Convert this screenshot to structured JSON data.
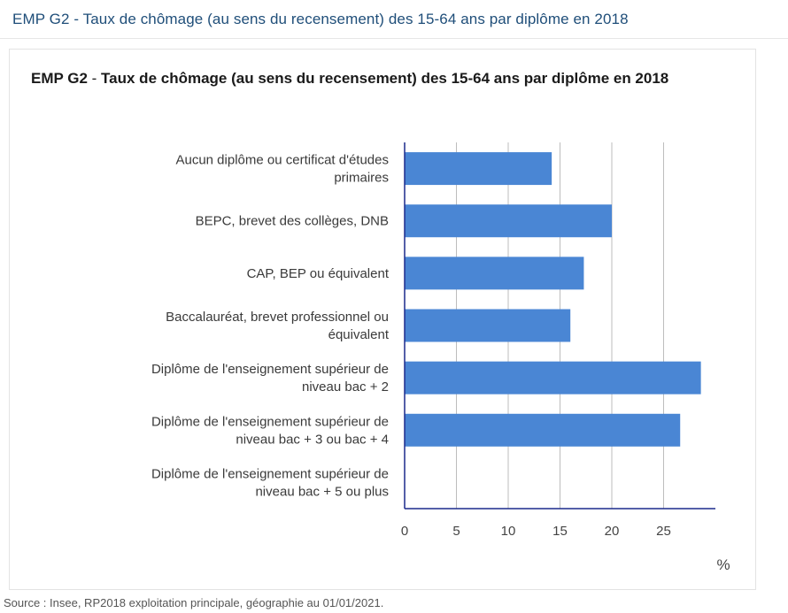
{
  "header": {
    "title": "EMP G2 - Taux de chômage (au sens du recensement) des 15-64 ans par diplôme en 2018"
  },
  "source": "Source : Insee, RP2018 exploitation principale, géographie au 01/01/2021.",
  "colors": {
    "bar": "#4a86d4",
    "axis": "#1c2a8c",
    "grid": "#bdbdbd"
  },
  "chart_data": {
    "type": "bar",
    "orientation": "horizontal",
    "title_code": "EMP G2",
    "title_sep": " - ",
    "title_text": "Taux de chômage (au sens du recensement) des 15-64 ans par diplôme en 2018",
    "categories": [
      [
        "Aucun diplôme ou certificat d'études",
        "primaires"
      ],
      [
        "BEPC, brevet des collèges, DNB"
      ],
      [
        "CAP, BEP ou équivalent"
      ],
      [
        "Baccalauréat, brevet professionnel ou",
        "équivalent"
      ],
      [
        "Diplôme de l'enseignement supérieur de",
        "niveau bac + 2"
      ],
      [
        "Diplôme de l'enseignement supérieur de",
        "niveau bac + 3 ou bac + 4"
      ],
      [
        "Diplôme de l'enseignement supérieur de",
        "niveau bac + 5 ou plus"
      ]
    ],
    "values": [
      14.2,
      20.0,
      17.3,
      16.0,
      28.6,
      26.6,
      null
    ],
    "xlim": [
      0,
      30
    ],
    "xticks": [
      0,
      5,
      10,
      15,
      20,
      25
    ],
    "xunit": "%",
    "grid": true,
    "legend": "none"
  }
}
